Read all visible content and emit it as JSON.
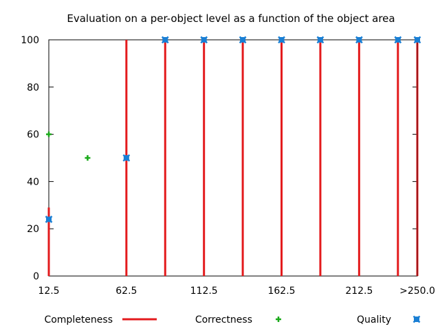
{
  "chart_data": {
    "type": "mixed",
    "title": "Evaluation on a per-object level as a function of the object area",
    "xlabel": "",
    "ylabel": "",
    "x_ticks": [
      "12.5",
      "62.5",
      "112.5",
      "162.5",
      "212.5",
      ">250.0"
    ],
    "y_ticks": [
      "0",
      "20",
      "40",
      "60",
      "80",
      "100"
    ],
    "xlim": [
      12.5,
      250
    ],
    "ylim": [
      0,
      100
    ],
    "grid": false,
    "legend_position": "bottom",
    "series": [
      {
        "name": "Completeness",
        "style": "impulses",
        "color": "#e31a1c",
        "x": [
          12.5,
          62.5,
          87.5,
          112.5,
          137.5,
          162.5,
          187.5,
          212.5,
          237.5,
          250
        ],
        "values": [
          29,
          100,
          100,
          100,
          100,
          100,
          100,
          100,
          100,
          100
        ]
      },
      {
        "name": "Correctness",
        "style": "points",
        "marker": "plus",
        "color": "#1aaa1a",
        "x": [
          12.5,
          37.5
        ],
        "values": [
          60,
          50
        ]
      },
      {
        "name": "Quality",
        "style": "points",
        "marker": "square-x",
        "color": "#1a7fd4",
        "x": [
          12.5,
          62.5,
          87.5,
          112.5,
          137.5,
          162.5,
          187.5,
          212.5,
          237.5,
          250
        ],
        "values": [
          24,
          50,
          100,
          100,
          100,
          100,
          100,
          100,
          100,
          100
        ]
      }
    ]
  }
}
